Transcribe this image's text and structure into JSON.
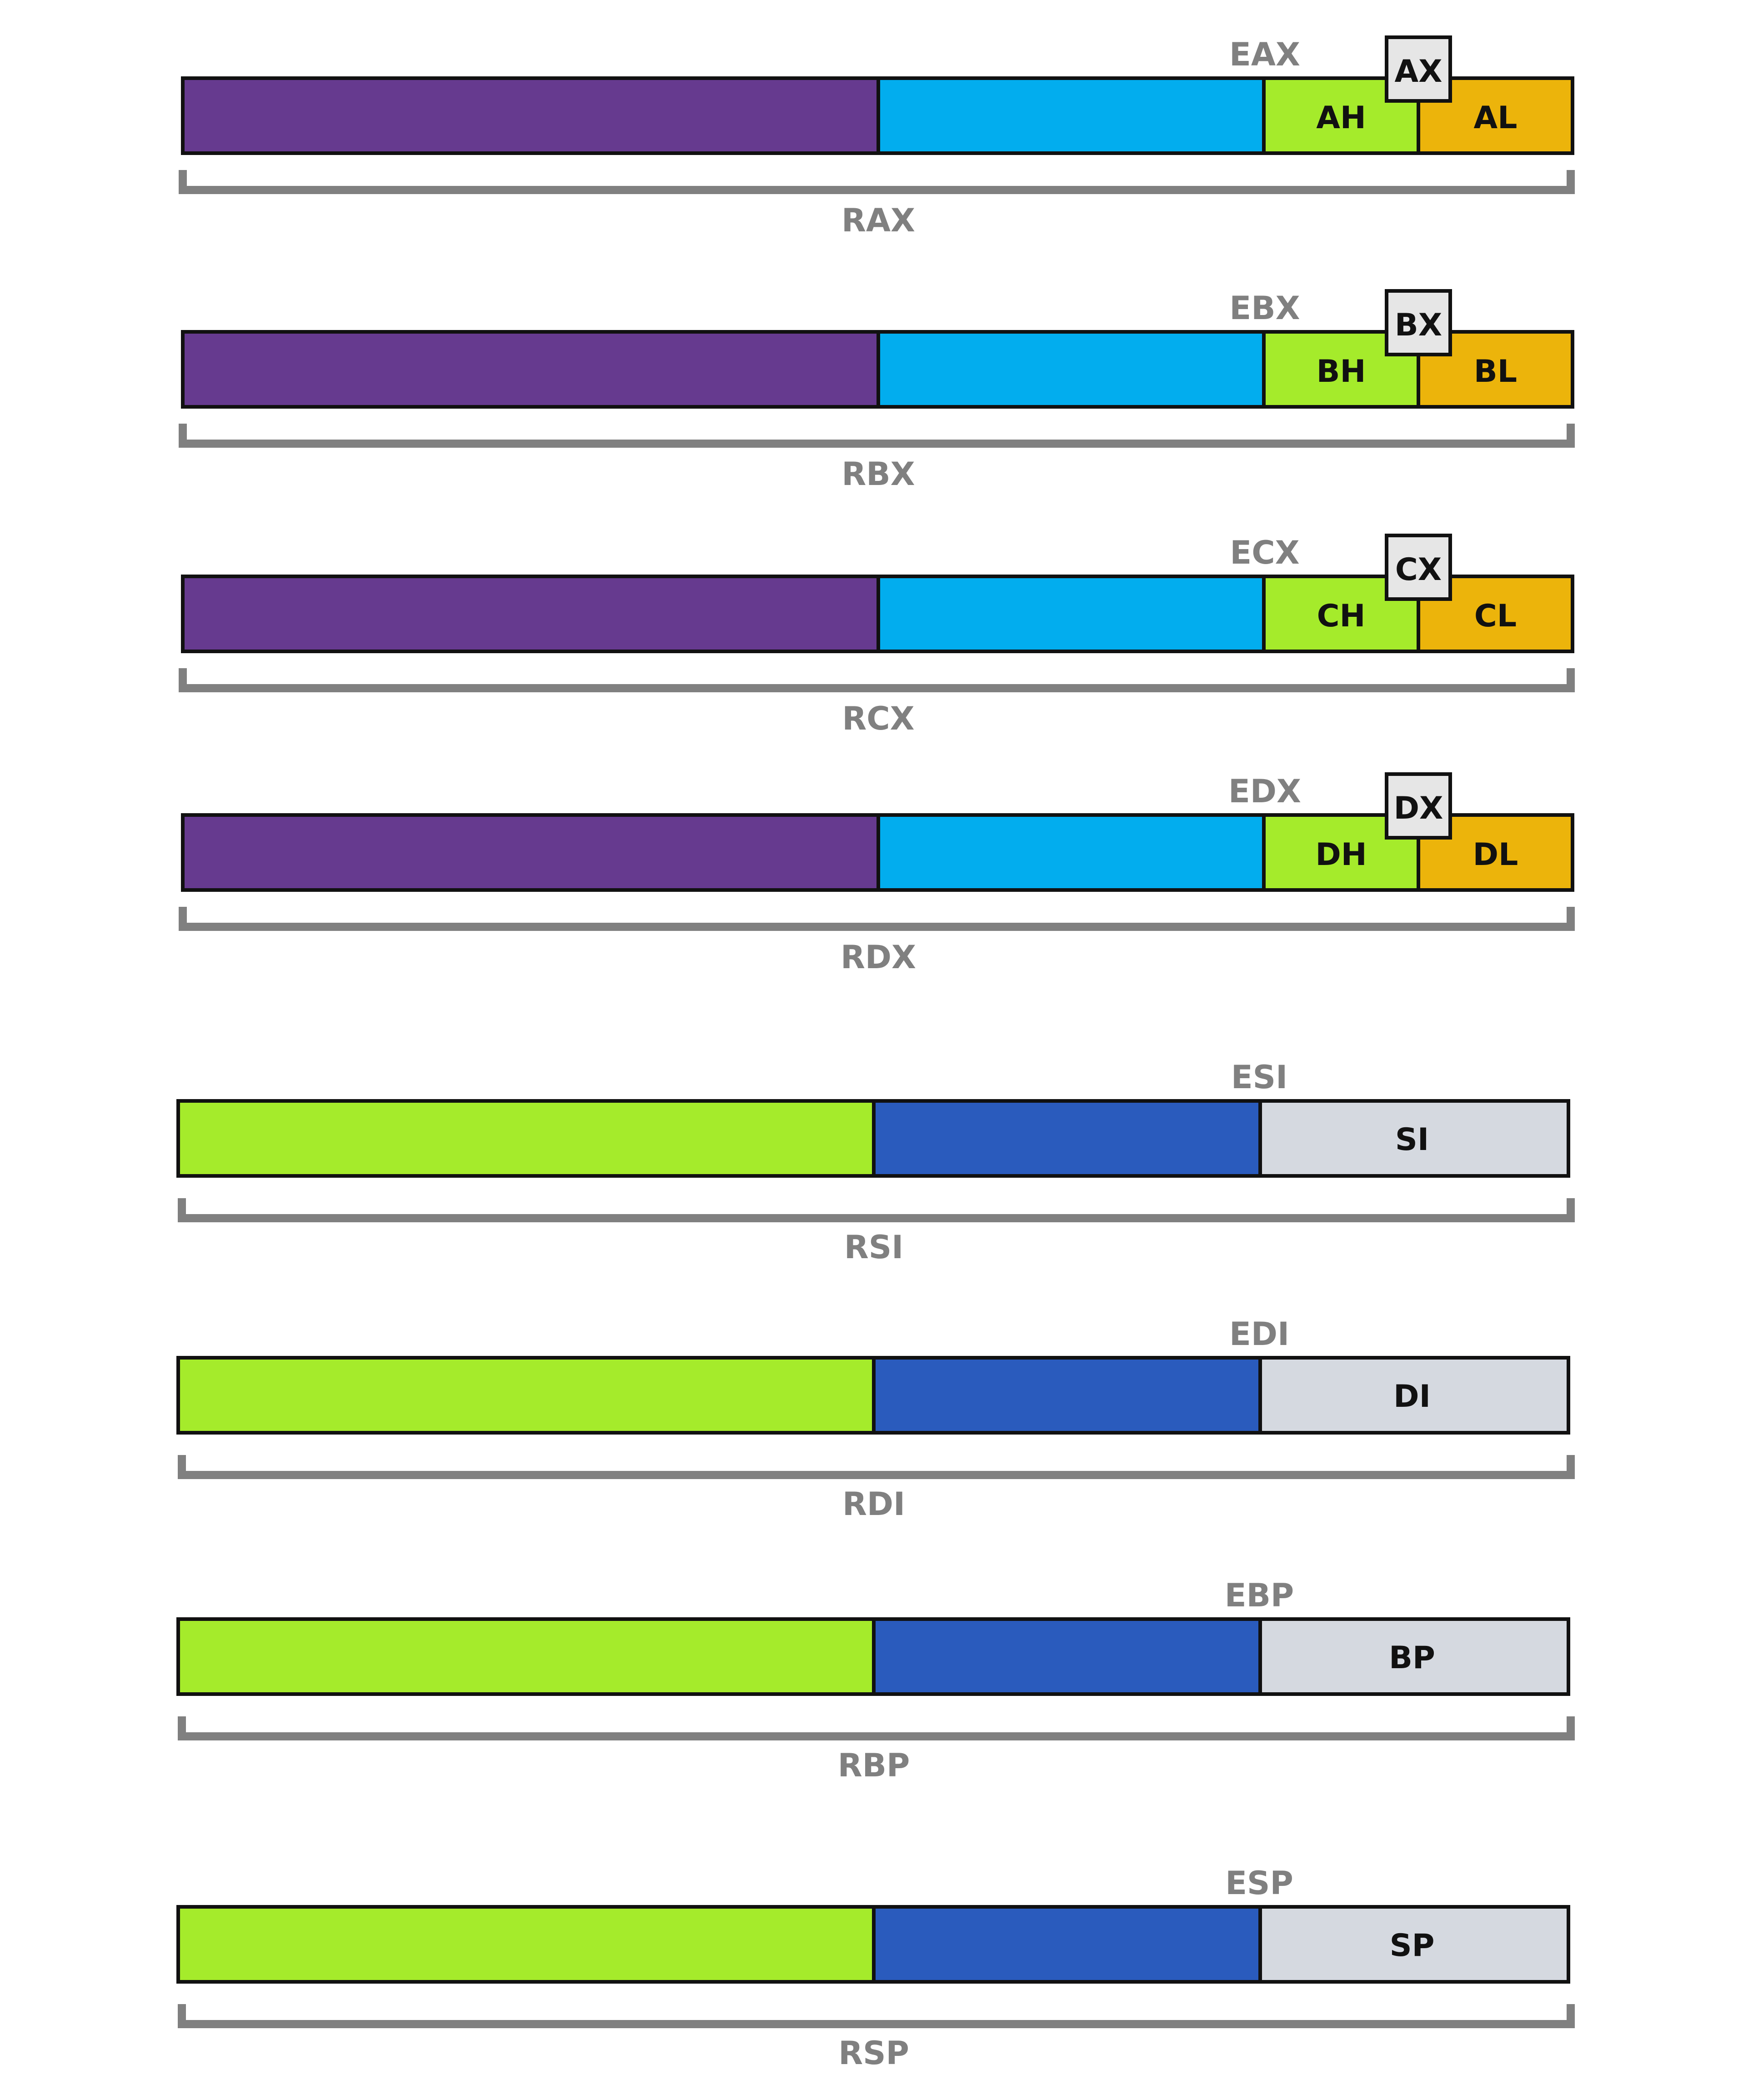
{
  "colors": {
    "purple": "#663a8f",
    "cyan": "#02adee",
    "lime": "#a5eb2b",
    "gold": "#ecb40b",
    "royal_blue": "#2a5bbd",
    "light_gray": "#d5d9e0",
    "box_gray": "#e6e6e6",
    "bracket_gray": "#808080",
    "outline": "#111111"
  },
  "gp_registers": [
    {
      "id": "rax",
      "r64": "RAX",
      "e32": "EAX",
      "x16": "AX",
      "h8": "AH",
      "l8": "AL"
    },
    {
      "id": "rbx",
      "r64": "RBX",
      "e32": "EBX",
      "x16": "BX",
      "h8": "BH",
      "l8": "BL"
    },
    {
      "id": "rcx",
      "r64": "RCX",
      "e32": "ECX",
      "x16": "CX",
      "h8": "CH",
      "l8": "CL"
    },
    {
      "id": "rdx",
      "r64": "RDX",
      "e32": "EDX",
      "x16": "DX",
      "h8": "DH",
      "l8": "DL"
    }
  ],
  "idx_registers": [
    {
      "id": "rsi",
      "r64": "RSI",
      "e32": "ESI",
      "x16": "SI"
    },
    {
      "id": "rdi",
      "r64": "RDI",
      "e32": "EDI",
      "x16": "DI"
    },
    {
      "id": "rbp",
      "r64": "RBP",
      "e32": "EBP",
      "x16": "BP"
    },
    {
      "id": "rsp",
      "r64": "RSP",
      "e32": "ESP",
      "x16": "SP"
    }
  ]
}
